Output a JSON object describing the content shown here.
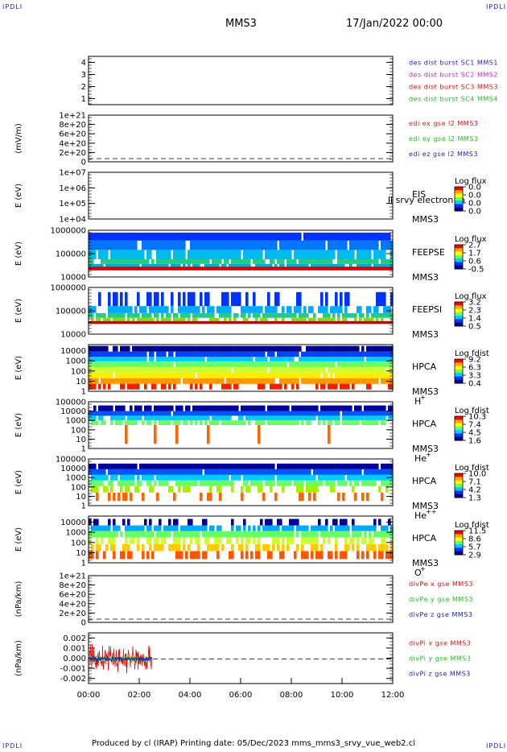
{
  "corners": {
    "tl": "IPDLI",
    "tr": "IPDLI",
    "bl": "IPDLI",
    "br": "IPDLI"
  },
  "header": {
    "spacecraft": "MMS3",
    "date": "17/Jan/2022 00:00"
  },
  "footer": {
    "text": "Produced by cl (IRAP)   Printing date: 05/Dec/2023   mms_mms3_srvy_vue_web2.cl"
  },
  "colors": {
    "blue": "#1f1fb0",
    "magenta": "#cc22cc",
    "red": "#dd1111",
    "green": "#22bb22",
    "colorbar": [
      "#ff0000",
      "#ffaa00",
      "#ffff00",
      "#66ff66",
      "#00ccff",
      "#0033ff",
      "#000088"
    ]
  },
  "chart_data": [
    {
      "type": "line",
      "id": "p1",
      "y_ticks": [
        "4",
        "3",
        "2",
        "1"
      ],
      "ylim": [
        0.5,
        4.5
      ],
      "legend": [
        {
          "text": "des dist burst SC1 MMS1",
          "color": "#1f1fb0"
        },
        {
          "text": "des dist burst SC2 MMS2",
          "color": "#cc22cc"
        },
        {
          "text": "des dist burst SC3 MMS3",
          "color": "#dd1111"
        },
        {
          "text": "des dist burst SC4 MMS4",
          "color": "#22bb22"
        }
      ],
      "series": []
    },
    {
      "type": "line",
      "id": "p2",
      "ylabel": "(mV/m)",
      "y_ticks": [
        "1e+21",
        "8e+20",
        "6e+20",
        "4e+20",
        "2e+20",
        "0"
      ],
      "ylim": [
        0,
        1e+21
      ],
      "legend": [
        {
          "text": "edi ex gse l2 MMS3",
          "color": "#dd1111"
        },
        {
          "text": "edi ey gse l2 MMS3",
          "color": "#22bb22"
        },
        {
          "text": "edi ez gse l2 MMS3",
          "color": "#1f1fb0"
        }
      ],
      "series": []
    },
    {
      "type": "heatmap",
      "id": "p3",
      "ylabel": "E (eV)",
      "y_ticks": [
        "1e+07",
        "1e+06",
        "1e+05",
        "1e+04"
      ],
      "ylim": [
        10000,
        10000000
      ],
      "log_y": true,
      "instrument": "EIS",
      "sc": "MMS3",
      "note": "ll srvy electron to",
      "cbar_title": "Log flux",
      "cbar_ticks": [
        "0.0",
        "0.0",
        "0.0",
        "0.0"
      ]
    },
    {
      "type": "heatmap",
      "id": "p4",
      "ylabel": "E (eV)",
      "y_ticks": [
        "1000000",
        "100000",
        "10000"
      ],
      "ylim": [
        10000,
        1000000
      ],
      "log_y": true,
      "instrument": "FEEPSE",
      "sc": "MMS3",
      "cbar_title": "Log flux",
      "cbar_ticks": [
        "2.7",
        "1.7",
        "0.6",
        "-0.5"
      ]
    },
    {
      "type": "heatmap",
      "id": "p5",
      "ylabel": "E (eV)",
      "y_ticks": [
        "1000000",
        "100000",
        "10000"
      ],
      "ylim": [
        10000,
        1000000
      ],
      "log_y": true,
      "instrument": "FEEPSI",
      "sc": "MMS3",
      "cbar_title": "Log flux",
      "cbar_ticks": [
        "3.2",
        "2.3",
        "1.4",
        "0.5"
      ]
    },
    {
      "type": "heatmap",
      "id": "p6",
      "ylabel": "E (eV)",
      "y_ticks": [
        "10000",
        "1000",
        "100",
        "10",
        "1"
      ],
      "ylim": [
        1,
        40000
      ],
      "log_y": true,
      "instrument": "HPCA",
      "sc": "MMS3",
      "species": "H",
      "charge": "+",
      "cbar_title": "Log fdist",
      "cbar_ticks": [
        "9.2",
        "6.3",
        "3.3",
        "0.4"
      ]
    },
    {
      "type": "heatmap",
      "id": "p7",
      "ylabel": "E (eV)",
      "y_ticks": [
        "100000",
        "10000",
        "1000",
        "100",
        "10",
        "1"
      ],
      "ylim": [
        1,
        100000
      ],
      "log_y": true,
      "instrument": "HPCA",
      "sc": "MMS3",
      "species": "He",
      "charge": "+",
      "cbar_title": "Log fdist",
      "cbar_ticks": [
        "10.3",
        "7.4",
        "4.5",
        "1.6"
      ]
    },
    {
      "type": "heatmap",
      "id": "p8",
      "ylabel": "E (eV)",
      "y_ticks": [
        "100000",
        "10000",
        "1000",
        "100",
        "10",
        "1"
      ],
      "ylim": [
        1,
        100000
      ],
      "log_y": true,
      "instrument": "HPCA",
      "sc": "MMS3",
      "species": "He",
      "charge": "++",
      "cbar_title": "Log fdist",
      "cbar_ticks": [
        "10.0",
        "7.1",
        "4.2",
        "1.3"
      ]
    },
    {
      "type": "heatmap",
      "id": "p9",
      "ylabel": "E (eV)",
      "y_ticks": [
        "10000",
        "1000",
        "100",
        "10",
        "1"
      ],
      "ylim": [
        1,
        40000
      ],
      "log_y": true,
      "instrument": "HPCA",
      "sc": "MMS3",
      "species": "O",
      "charge": "+",
      "cbar_title": "Log fdist",
      "cbar_ticks": [
        "11.5",
        "8.6",
        "5.7",
        "2.9"
      ]
    },
    {
      "type": "line",
      "id": "p10",
      "ylabel": "(nPa/km)",
      "y_ticks": [
        "1e+21",
        "8e+20",
        "6e+20",
        "4e+20",
        "2e+20",
        "0"
      ],
      "ylim": [
        0,
        1e+21
      ],
      "legend": [
        {
          "text": "divPe x gse MMS3",
          "color": "#dd1111"
        },
        {
          "text": "divPe y gse MMS3",
          "color": "#22bb22"
        },
        {
          "text": "divPe z gse MMS3",
          "color": "#1f1fb0"
        }
      ],
      "series": []
    },
    {
      "type": "line",
      "id": "p11",
      "ylabel": "(nPa/km)",
      "y_ticks": [
        "0.002",
        "0.001",
        "0.000",
        "-0.001",
        "-0.002"
      ],
      "ylim": [
        -0.0025,
        0.0025
      ],
      "legend": [
        {
          "text": "divPi x gse MMS3",
          "color": "#dd1111"
        },
        {
          "text": "divPi y gse MMS3",
          "color": "#22bb22"
        },
        {
          "text": "divPi z gse MMS3",
          "color": "#1f1fb0"
        }
      ],
      "series": [
        {
          "name": "divPi x gse MMS3",
          "color": "#dd1111",
          "t_range": [
            "00:00",
            "02:30"
          ],
          "amplitude": 0.0015
        },
        {
          "name": "divPi y gse MMS3",
          "color": "#22bb22",
          "t_range": [
            "00:00",
            "02:30"
          ],
          "amplitude": 0.0003
        },
        {
          "name": "divPi z gse MMS3",
          "color": "#1f1fb0",
          "t_range": [
            "00:00",
            "02:30"
          ],
          "amplitude": 0.0002
        }
      ]
    }
  ],
  "x_axis": {
    "ticks": [
      "00:00",
      "02:00",
      "04:00",
      "06:00",
      "08:00",
      "10:00",
      "12:00"
    ],
    "xlim": [
      "00:00",
      "12:00"
    ]
  }
}
